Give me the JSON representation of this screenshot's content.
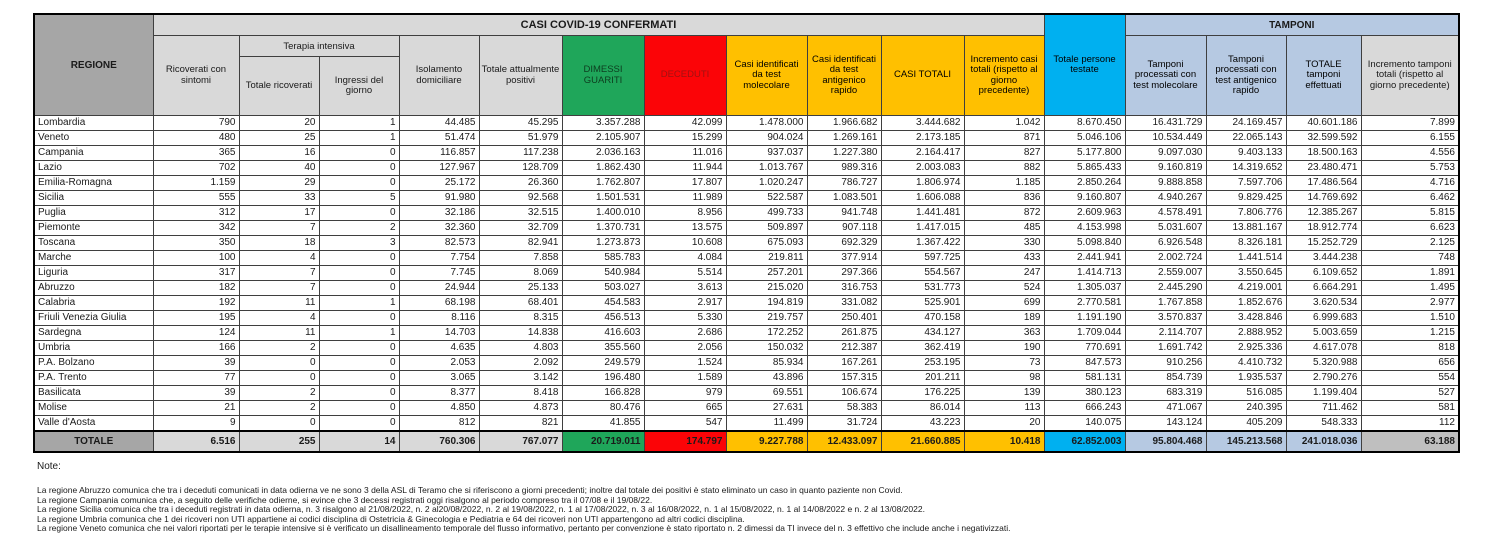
{
  "header": {
    "regione": "REGIONE",
    "casi_confermati": "CASI COVID-19 CONFERMATI",
    "tamponi_band": "TAMPONI",
    "terapia_intensiva": "Terapia intensiva",
    "cols": {
      "ricoverati": "Ricoverati con sintomi",
      "ti_totale": "Totale ricoverati",
      "ti_ingressi": "Ingressi del giorno",
      "isolamento": "Isolamento domiciliare",
      "attualmente_positivi": "Totale attualmente positivi",
      "dimessi_guariti": "DIMESSI GUARITI",
      "deceduti": "DECEDUTI",
      "casi_molecolare": "Casi identificati da test molecolare",
      "casi_antigenico": "Casi identificati da test antigenico rapido",
      "casi_totali": "CASI TOTALI",
      "incremento_casi": "Incremento casi totali (rispetto al giorno precedente)",
      "persone_testate": "Totale persone testate",
      "tamponi_molecolare": "Tamponi processati con test molecolare",
      "tamponi_antigenico": "Tamponi processati con test antigenico rapido",
      "tamponi_totale": "TOTALE tamponi effettuati",
      "incremento_tamponi": "Incremento tamponi totali (rispetto al giorno precedente)"
    }
  },
  "colors": {
    "green": "#1fa65a",
    "red": "#fb0407",
    "yellow": "#ffc000",
    "cyan": "#00b0f0",
    "light_blue": "#b6c9e2",
    "header_gray": "#d9d9d9",
    "regione_gray": "#a6a6a6"
  },
  "rows": [
    {
      "regione": "Lombardia",
      "values": [
        "790",
        "20",
        "1",
        "44.485",
        "45.295",
        "3.357.288",
        "42.099",
        "1.478.000",
        "1.966.682",
        "3.444.682",
        "1.042",
        "8.670.450",
        "16.431.729",
        "24.169.457",
        "40.601.186",
        "7.899"
      ]
    },
    {
      "regione": "Veneto",
      "values": [
        "480",
        "25",
        "1",
        "51.474",
        "51.979",
        "2.105.907",
        "15.299",
        "904.024",
        "1.269.161",
        "2.173.185",
        "871",
        "5.046.106",
        "10.534.449",
        "22.065.143",
        "32.599.592",
        "6.155"
      ]
    },
    {
      "regione": "Campania",
      "values": [
        "365",
        "16",
        "0",
        "116.857",
        "117.238",
        "2.036.163",
        "11.016",
        "937.037",
        "1.227.380",
        "2.164.417",
        "827",
        "5.177.800",
        "9.097.030",
        "9.403.133",
        "18.500.163",
        "4.556"
      ]
    },
    {
      "regione": "Lazio",
      "values": [
        "702",
        "40",
        "0",
        "127.967",
        "128.709",
        "1.862.430",
        "11.944",
        "1.013.767",
        "989.316",
        "2.003.083",
        "882",
        "5.865.433",
        "9.160.819",
        "14.319.652",
        "23.480.471",
        "5.753"
      ]
    },
    {
      "regione": "Emilia-Romagna",
      "values": [
        "1.159",
        "29",
        "0",
        "25.172",
        "26.360",
        "1.762.807",
        "17.807",
        "1.020.247",
        "786.727",
        "1.806.974",
        "1.185",
        "2.850.264",
        "9.888.858",
        "7.597.706",
        "17.486.564",
        "4.716"
      ]
    },
    {
      "regione": "Sicilia",
      "values": [
        "555",
        "33",
        "5",
        "91.980",
        "92.568",
        "1.501.531",
        "11.989",
        "522.587",
        "1.083.501",
        "1.606.088",
        "836",
        "9.160.807",
        "4.940.267",
        "9.829.425",
        "14.769.692",
        "6.462"
      ]
    },
    {
      "regione": "Puglia",
      "values": [
        "312",
        "17",
        "0",
        "32.186",
        "32.515",
        "1.400.010",
        "8.956",
        "499.733",
        "941.748",
        "1.441.481",
        "872",
        "2.609.963",
        "4.578.491",
        "7.806.776",
        "12.385.267",
        "5.815"
      ]
    },
    {
      "regione": "Piemonte",
      "values": [
        "342",
        "7",
        "2",
        "32.360",
        "32.709",
        "1.370.731",
        "13.575",
        "509.897",
        "907.118",
        "1.417.015",
        "485",
        "4.153.998",
        "5.031.607",
        "13.881.167",
        "18.912.774",
        "6.623"
      ]
    },
    {
      "regione": "Toscana",
      "values": [
        "350",
        "18",
        "3",
        "82.573",
        "82.941",
        "1.273.873",
        "10.608",
        "675.093",
        "692.329",
        "1.367.422",
        "330",
        "5.098.840",
        "6.926.548",
        "8.326.181",
        "15.252.729",
        "2.125"
      ]
    },
    {
      "regione": "Marche",
      "values": [
        "100",
        "4",
        "0",
        "7.754",
        "7.858",
        "585.783",
        "4.084",
        "219.811",
        "377.914",
        "597.725",
        "433",
        "2.441.941",
        "2.002.724",
        "1.441.514",
        "3.444.238",
        "748"
      ]
    },
    {
      "regione": "Liguria",
      "values": [
        "317",
        "7",
        "0",
        "7.745",
        "8.069",
        "540.984",
        "5.514",
        "257.201",
        "297.366",
        "554.567",
        "247",
        "1.414.713",
        "2.559.007",
        "3.550.645",
        "6.109.652",
        "1.891"
      ]
    },
    {
      "regione": "Abruzzo",
      "values": [
        "182",
        "7",
        "0",
        "24.944",
        "25.133",
        "503.027",
        "3.613",
        "215.020",
        "316.753",
        "531.773",
        "524",
        "1.305.037",
        "2.445.290",
        "4.219.001",
        "6.664.291",
        "1.495"
      ]
    },
    {
      "regione": "Calabria",
      "values": [
        "192",
        "11",
        "1",
        "68.198",
        "68.401",
        "454.583",
        "2.917",
        "194.819",
        "331.082",
        "525.901",
        "699",
        "2.770.581",
        "1.767.858",
        "1.852.676",
        "3.620.534",
        "2.977"
      ]
    },
    {
      "regione": "Friuli Venezia Giulia",
      "values": [
        "195",
        "4",
        "0",
        "8.116",
        "8.315",
        "456.513",
        "5.330",
        "219.757",
        "250.401",
        "470.158",
        "189",
        "1.191.190",
        "3.570.837",
        "3.428.846",
        "6.999.683",
        "1.510"
      ]
    },
    {
      "regione": "Sardegna",
      "values": [
        "124",
        "11",
        "1",
        "14.703",
        "14.838",
        "416.603",
        "2.686",
        "172.252",
        "261.875",
        "434.127",
        "363",
        "1.709.044",
        "2.114.707",
        "2.888.952",
        "5.003.659",
        "1.215"
      ]
    },
    {
      "regione": "Umbria",
      "values": [
        "166",
        "2",
        "0",
        "4.635",
        "4.803",
        "355.560",
        "2.056",
        "150.032",
        "212.387",
        "362.419",
        "190",
        "770.691",
        "1.691.742",
        "2.925.336",
        "4.617.078",
        "818"
      ]
    },
    {
      "regione": "P.A. Bolzano",
      "values": [
        "39",
        "0",
        "0",
        "2.053",
        "2.092",
        "249.579",
        "1.524",
        "85.934",
        "167.261",
        "253.195",
        "73",
        "847.573",
        "910.256",
        "4.410.732",
        "5.320.988",
        "656"
      ]
    },
    {
      "regione": "P.A. Trento",
      "values": [
        "77",
        "0",
        "0",
        "3.065",
        "3.142",
        "196.480",
        "1.589",
        "43.896",
        "157.315",
        "201.211",
        "98",
        "581.131",
        "854.739",
        "1.935.537",
        "2.790.276",
        "554"
      ]
    },
    {
      "regione": "Basilicata",
      "values": [
        "39",
        "2",
        "0",
        "8.377",
        "8.418",
        "166.828",
        "979",
        "69.551",
        "106.674",
        "176.225",
        "139",
        "380.123",
        "683.319",
        "516.085",
        "1.199.404",
        "527"
      ]
    },
    {
      "regione": "Molise",
      "values": [
        "21",
        "2",
        "0",
        "4.850",
        "4.873",
        "80.476",
        "665",
        "27.631",
        "58.383",
        "86.014",
        "113",
        "666.243",
        "471.067",
        "240.395",
        "711.462",
        "581"
      ]
    },
    {
      "regione": "Valle d'Aosta",
      "values": [
        "9",
        "0",
        "0",
        "812",
        "821",
        "41.855",
        "547",
        "11.499",
        "31.724",
        "43.223",
        "20",
        "140.075",
        "143.124",
        "405.209",
        "548.333",
        "112"
      ]
    }
  ],
  "total_row": {
    "regione": "TOTALE",
    "values": [
      "6.516",
      "255",
      "14",
      "760.306",
      "767.077",
      "20.719.011",
      "174.797",
      "9.227.788",
      "12.433.097",
      "21.660.885",
      "10.418",
      "62.852.003",
      "95.804.468",
      "145.213.568",
      "241.018.036",
      "63.188"
    ]
  },
  "notes": {
    "label": "Note:",
    "items": [
      "La regione Abruzzo comunica che tra i deceduti comunicati in data odierna ve ne sono 3 della ASL di Teramo che si riferiscono a giorni precedenti; inoltre dal totale dei positivi è stato eliminato un caso in quanto paziente non Covid.",
      "La regione Campania comunica che, a seguito delle verifiche odierne, si evince che 3 decessi registrati oggi risalgono al periodo compreso tra il 07/08 e il 19/08/22.",
      "La regione Sicilia comunica che tra i deceduti registrati in data odierna, n. 3 risalgono al 21/08/2022, n. 2 al20/08/2022, n. 2 al 19/08/2022, n. 1 al 17/08/2022, n. 3 al 16/08/2022, n. 1 al 15/08/2022, n. 1 al 14/08/2022 e n. 2 al 13/08/2022.",
      "La regione Umbria comunica che 1 dei ricoveri non UTI appartiene ai codici disciplina di Ostetricia & Ginecologia e Pediatria e 64 dei ricoveri non UTI appartengono ad altri codici disciplina.",
      "La regione Veneto comunica che nei valori riportati per le terapie intensive si è verificato un disallineamento temporale del flusso informativo, pertanto per convenzione è stato riportato n. 2 dimessi da TI  invece del n. 3 effettivo che include anche i negativizzati."
    ]
  }
}
